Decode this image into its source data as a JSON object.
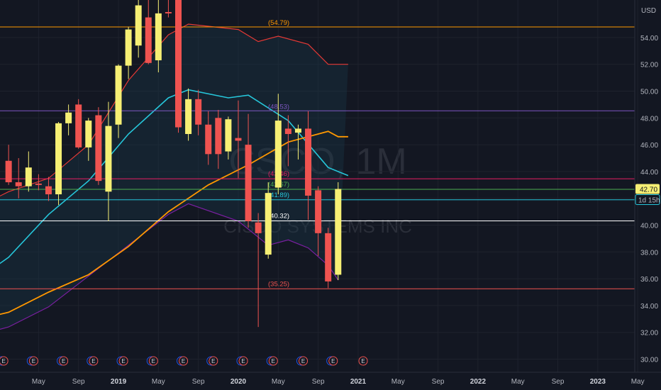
{
  "watermark": {
    "symbol": "CSCO, 1M",
    "name": "CISCO SYSTEMS INC"
  },
  "currency": "USD",
  "price_badge": {
    "price": "42.70",
    "countdown": "1d 15h"
  },
  "colors": {
    "up": "#f6ef74",
    "down": "#ef5350",
    "bg": "#131722",
    "ma_orange": "#ff9800",
    "bb_mid": "#26c6da",
    "bb_upper": "#e53935",
    "bb_lower": "#7b1fa2",
    "hline_purple": "#7e57c2"
  },
  "levels": [
    {
      "price": 54.79,
      "label": "(54.79)",
      "color": "#ff9800",
      "show_label": true
    },
    {
      "price": 48.53,
      "label": "(48.53)",
      "color": "#7e57c2",
      "show_label": true
    },
    {
      "price": 43.46,
      "label": "(43.46)",
      "color": "#e91e63",
      "show_label": true
    },
    {
      "price": 42.67,
      "label": "(42.67)",
      "color": "#4caf50",
      "show_label": true
    },
    {
      "price": 41.89,
      "label": "(41.89)",
      "color": "#26c6da",
      "show_label": true
    },
    {
      "price": 40.32,
      "label": "(40.32)",
      "color": "#ffffff",
      "show_label": true
    },
    {
      "price": 35.25,
      "label": "(35.25)",
      "color": "#ef5350",
      "show_label": true
    }
  ],
  "chart_data": {
    "type": "candlestick",
    "title": "CSCO, 1M",
    "subtitle": "CISCO SYSTEMS INC",
    "ylabel": "USD",
    "ylim": [
      29.5,
      55.3
    ],
    "y_ticks": [
      "30.00",
      "32.00",
      "34.00",
      "36.00",
      "38.00",
      "40.00",
      "42.00",
      "44.00",
      "46.00",
      "48.00",
      "50.00",
      "52.00",
      "54.00"
    ],
    "x_ticks": [
      {
        "label": "May",
        "x": "2018-05",
        "bold": false
      },
      {
        "label": "Sep",
        "x": "2018-09",
        "bold": false
      },
      {
        "label": "2019",
        "x": "2019-01",
        "bold": true
      },
      {
        "label": "May",
        "x": "2019-05",
        "bold": false
      },
      {
        "label": "Sep",
        "x": "2019-09",
        "bold": false
      },
      {
        "label": "2020",
        "x": "2020-01",
        "bold": true
      },
      {
        "label": "May",
        "x": "2020-05",
        "bold": false
      },
      {
        "label": "Sep",
        "x": "2020-09",
        "bold": false
      },
      {
        "label": "2021",
        "x": "2021-01",
        "bold": true
      },
      {
        "label": "May",
        "x": "2021-05",
        "bold": false
      },
      {
        "label": "Sep",
        "x": "2021-09",
        "bold": false
      },
      {
        "label": "2022",
        "x": "2022-01",
        "bold": true
      },
      {
        "label": "May",
        "x": "2022-05",
        "bold": false
      },
      {
        "label": "Sep",
        "x": "2022-09",
        "bold": false
      },
      {
        "label": "2023",
        "x": "2023-01",
        "bold": true
      },
      {
        "label": "May",
        "x": "2023-05",
        "bold": false
      }
    ],
    "candles": [
      {
        "d": "2018-02",
        "o": 44.8,
        "h": 46.0,
        "l": 43.0,
        "c": 43.2
      },
      {
        "d": "2018-03",
        "o": 43.2,
        "h": 45.0,
        "l": 42.0,
        "c": 42.9
      },
      {
        "d": "2018-04",
        "o": 42.9,
        "h": 45.5,
        "l": 42.5,
        "c": 44.3
      },
      {
        "d": "2018-05",
        "o": 43.1,
        "h": 43.8,
        "l": 42.6,
        "c": 43.0
      },
      {
        "d": "2018-06",
        "o": 42.9,
        "h": 43.6,
        "l": 41.8,
        "c": 42.3
      },
      {
        "d": "2018-07",
        "o": 42.3,
        "h": 47.7,
        "l": 41.5,
        "c": 47.6
      },
      {
        "d": "2018-08",
        "o": 47.6,
        "h": 49.0,
        "l": 46.7,
        "c": 48.4
      },
      {
        "d": "2018-09",
        "o": 49.0,
        "h": 49.4,
        "l": 45.7,
        "c": 45.8
      },
      {
        "d": "2018-10",
        "o": 45.8,
        "h": 48.0,
        "l": 44.8,
        "c": 47.8
      },
      {
        "d": "2018-11",
        "o": 48.2,
        "h": 48.8,
        "l": 43.0,
        "c": 43.3
      },
      {
        "d": "2018-12",
        "o": 42.5,
        "h": 49.2,
        "l": 40.3,
        "c": 47.4
      },
      {
        "d": "2019-01",
        "o": 47.5,
        "h": 52.0,
        "l": 46.5,
        "c": 51.9
      },
      {
        "d": "2019-02",
        "o": 51.9,
        "h": 54.8,
        "l": 50.9,
        "c": 54.6
      },
      {
        "d": "2019-03",
        "o": 53.4,
        "h": 57.8,
        "l": 52.5,
        "c": 56.4
      },
      {
        "d": "2019-04",
        "o": 55.5,
        "h": 57.0,
        "l": 52.0,
        "c": 52.1
      },
      {
        "d": "2019-05",
        "o": 52.3,
        "h": 57.5,
        "l": 51.4,
        "c": 55.8
      },
      {
        "d": "2019-06",
        "o": 55.9,
        "h": 57.5,
        "l": 55.5,
        "c": 55.8
      },
      {
        "d": "2019-07",
        "o": 56.8,
        "h": 58.3,
        "l": 46.9,
        "c": 47.3
      },
      {
        "d": "2019-08",
        "o": 46.8,
        "h": 50.2,
        "l": 46.3,
        "c": 49.4
      },
      {
        "d": "2019-09",
        "o": 49.4,
        "h": 50.1,
        "l": 46.7,
        "c": 47.5
      },
      {
        "d": "2019-10",
        "o": 47.5,
        "h": 48.5,
        "l": 44.5,
        "c": 45.3
      },
      {
        "d": "2019-11",
        "o": 48.0,
        "h": 48.6,
        "l": 44.2,
        "c": 45.3
      },
      {
        "d": "2019-12",
        "o": 45.5,
        "h": 48.1,
        "l": 44.9,
        "c": 47.9
      },
      {
        "d": "2020-01",
        "o": 46.5,
        "h": 49.3,
        "l": 43.5,
        "c": 46.3
      },
      {
        "d": "2020-02",
        "o": 46.0,
        "h": 48.3,
        "l": 39.8,
        "c": 40.3
      },
      {
        "d": "2020-03",
        "o": 40.2,
        "h": 40.9,
        "l": 32.4,
        "c": 39.4
      },
      {
        "d": "2020-04",
        "o": 37.8,
        "h": 43.2,
        "l": 37.5,
        "c": 42.4
      },
      {
        "d": "2020-05",
        "o": 42.8,
        "h": 49.8,
        "l": 42.3,
        "c": 47.8
      },
      {
        "d": "2020-06",
        "o": 47.2,
        "h": 48.2,
        "l": 44.4,
        "c": 46.8
      },
      {
        "d": "2020-07",
        "o": 46.9,
        "h": 47.5,
        "l": 44.9,
        "c": 47.2
      },
      {
        "d": "2020-08",
        "o": 47.2,
        "h": 48.5,
        "l": 40.4,
        "c": 42.2
      },
      {
        "d": "2020-09",
        "o": 42.6,
        "h": 42.9,
        "l": 37.7,
        "c": 39.4
      },
      {
        "d": "2020-10",
        "o": 39.4,
        "h": 39.8,
        "l": 35.3,
        "c": 35.8
      },
      {
        "d": "2020-11",
        "o": 36.3,
        "h": 43.2,
        "l": 35.9,
        "c": 42.7
      }
    ],
    "ma_orange": [
      {
        "d": "2017-10",
        "v": 32.8
      },
      {
        "d": "2018-02",
        "v": 33.5
      },
      {
        "d": "2018-06",
        "v": 35.0
      },
      {
        "d": "2018-10",
        "v": 36.3
      },
      {
        "d": "2019-02",
        "v": 38.4
      },
      {
        "d": "2019-06",
        "v": 41.0
      },
      {
        "d": "2019-10",
        "v": 43.0
      },
      {
        "d": "2020-02",
        "v": 44.5
      },
      {
        "d": "2020-06",
        "v": 46.2
      },
      {
        "d": "2020-10",
        "v": 47.0
      },
      {
        "d": "2020-11",
        "v": 46.6
      },
      {
        "d": "2020-12",
        "v": 46.6
      }
    ],
    "bb_mid": [
      {
        "d": "2017-10",
        "v": 35.5
      },
      {
        "d": "2018-02",
        "v": 37.6
      },
      {
        "d": "2018-06",
        "v": 40.8
      },
      {
        "d": "2018-10",
        "v": 43.3
      },
      {
        "d": "2019-02",
        "v": 46.8
      },
      {
        "d": "2019-06",
        "v": 49.5
      },
      {
        "d": "2019-08",
        "v": 50.1
      },
      {
        "d": "2019-12",
        "v": 49.5
      },
      {
        "d": "2020-02",
        "v": 49.7
      },
      {
        "d": "2020-06",
        "v": 47.8
      },
      {
        "d": "2020-10",
        "v": 44.3
      },
      {
        "d": "2020-12",
        "v": 43.7
      }
    ],
    "bb_upper": [
      {
        "d": "2017-10",
        "v": 41.0
      },
      {
        "d": "2018-02",
        "v": 42.5
      },
      {
        "d": "2018-06",
        "v": 43.5
      },
      {
        "d": "2018-10",
        "v": 46.0
      },
      {
        "d": "2019-02",
        "v": 50.8
      },
      {
        "d": "2019-06",
        "v": 54.2
      },
      {
        "d": "2019-08",
        "v": 55.0
      },
      {
        "d": "2020-01",
        "v": 54.6
      },
      {
        "d": "2020-03",
        "v": 53.7
      },
      {
        "d": "2020-05",
        "v": 54.1
      },
      {
        "d": "2020-08",
        "v": 53.5
      },
      {
        "d": "2020-10",
        "v": 52.0
      },
      {
        "d": "2020-12",
        "v": 52.0
      }
    ],
    "bb_lower": [
      {
        "d": "2017-10",
        "v": 31.6
      },
      {
        "d": "2018-02",
        "v": 32.4
      },
      {
        "d": "2018-06",
        "v": 33.9
      },
      {
        "d": "2018-10",
        "v": 36.2
      },
      {
        "d": "2019-02",
        "v": 38.5
      },
      {
        "d": "2019-06",
        "v": 40.8
      },
      {
        "d": "2019-08",
        "v": 41.6
      },
      {
        "d": "2020-01",
        "v": 40.3
      },
      {
        "d": "2020-04",
        "v": 38.5
      },
      {
        "d": "2020-06",
        "v": 38.9
      },
      {
        "d": "2020-08",
        "v": 38.3
      },
      {
        "d": "2020-10",
        "v": 37.0
      },
      {
        "d": "2020-11",
        "v": 35.9
      }
    ],
    "earnings_markers": [
      {
        "d": "2018-02",
        "label": "E",
        "type": "past"
      },
      {
        "d": "2018-05",
        "label": "E",
        "type": "past"
      },
      {
        "d": "2018-08",
        "label": "E",
        "type": "past"
      },
      {
        "d": "2018-11",
        "label": "E",
        "type": "past"
      },
      {
        "d": "2019-02",
        "label": "E",
        "type": "past"
      },
      {
        "d": "2019-05",
        "label": "E",
        "type": "past"
      },
      {
        "d": "2019-08",
        "label": "E",
        "type": "past"
      },
      {
        "d": "2019-11",
        "label": "E",
        "type": "past"
      },
      {
        "d": "2020-02",
        "label": "E",
        "type": "past"
      },
      {
        "d": "2020-05",
        "label": "E",
        "type": "past"
      },
      {
        "d": "2020-08",
        "label": "E",
        "type": "past"
      },
      {
        "d": "2020-11",
        "label": "E",
        "type": "past"
      },
      {
        "d": "2021-02",
        "label": "E",
        "type": "future"
      }
    ],
    "dividend_markers": [
      {
        "d": "2018-01",
        "label": "D"
      },
      {
        "d": "2018-04",
        "label": "D"
      },
      {
        "d": "2018-07",
        "label": "D"
      },
      {
        "d": "2018-10",
        "label": "D"
      },
      {
        "d": "2019-01",
        "label": "D"
      },
      {
        "d": "2019-04",
        "label": "D"
      },
      {
        "d": "2019-07",
        "label": "D"
      },
      {
        "d": "2019-10",
        "label": "D"
      },
      {
        "d": "2020-01",
        "label": "D"
      },
      {
        "d": "2020-04",
        "label": "D"
      },
      {
        "d": "2020-07",
        "label": "D"
      },
      {
        "d": "2020-10",
        "label": "D"
      }
    ]
  }
}
